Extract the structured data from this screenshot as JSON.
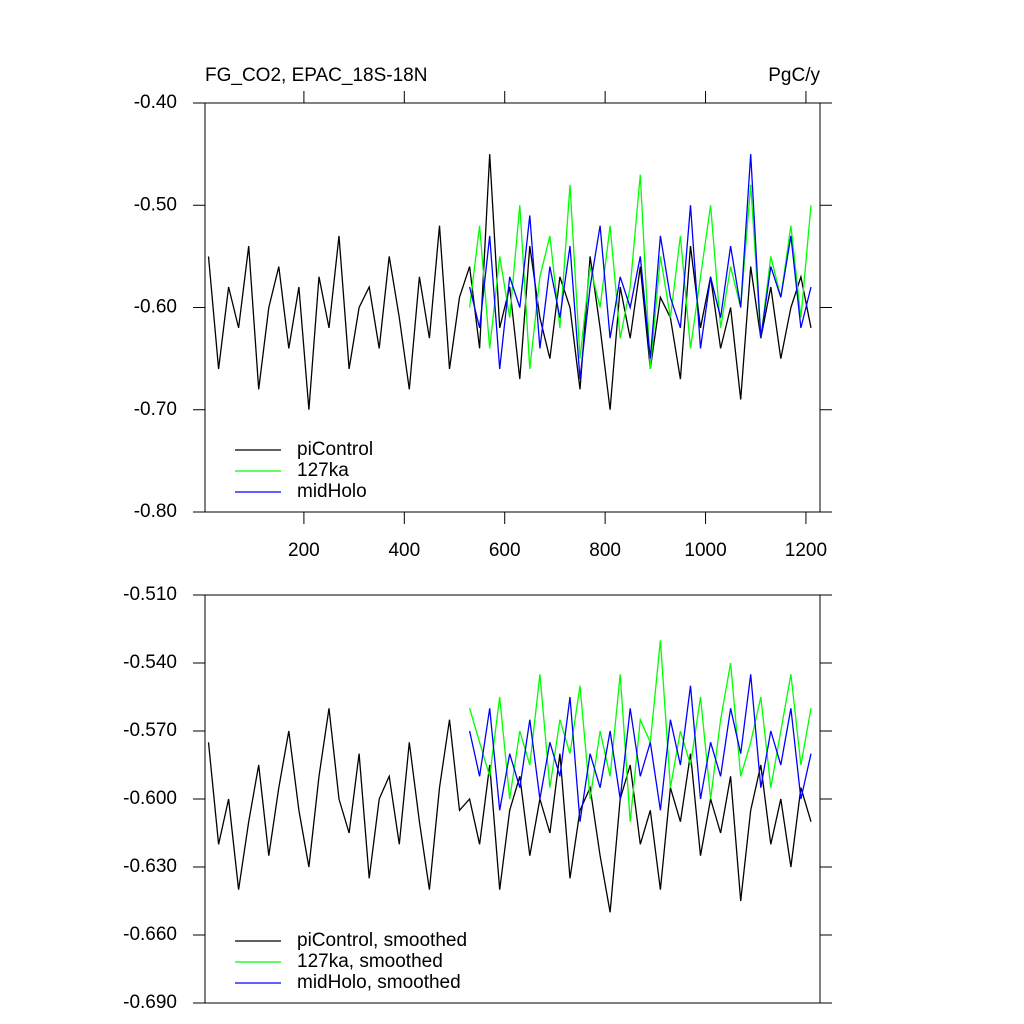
{
  "chart_data": [
    {
      "type": "line",
      "title": "FG_CO2, EPAC_18S-18N",
      "units": "PgC/y",
      "x": [
        10,
        30,
        50,
        70,
        90,
        110,
        130,
        150,
        170,
        190,
        210,
        230,
        250,
        270,
        290,
        310,
        330,
        350,
        370,
        390,
        410,
        430,
        450,
        470,
        490,
        510,
        530,
        550,
        570,
        590,
        610,
        630,
        650,
        670,
        690,
        710,
        730,
        750,
        770,
        790,
        810,
        830,
        850,
        870,
        890,
        910,
        930,
        950,
        970,
        990,
        1010,
        1030,
        1050,
        1070,
        1090,
        1110,
        1130,
        1150,
        1170,
        1190,
        1210
      ],
      "series": [
        {
          "name": "piControl",
          "color": "#000000",
          "values": [
            -0.55,
            -0.66,
            -0.58,
            -0.62,
            -0.54,
            -0.68,
            -0.6,
            -0.56,
            -0.64,
            -0.58,
            -0.7,
            -0.57,
            -0.62,
            -0.53,
            -0.66,
            -0.6,
            -0.58,
            -0.64,
            -0.55,
            -0.61,
            -0.68,
            -0.57,
            -0.63,
            -0.52,
            -0.66,
            -0.59,
            -0.56,
            -0.64,
            -0.45,
            -0.62,
            -0.58,
            -0.67,
            -0.54,
            -0.61,
            -0.65,
            -0.57,
            -0.6,
            -0.68,
            -0.55,
            -0.62,
            -0.7,
            -0.58,
            -0.63,
            -0.56,
            -0.66,
            -0.59,
            -0.61,
            -0.67,
            -0.54,
            -0.62,
            -0.57,
            -0.64,
            -0.6,
            -0.69,
            -0.56,
            -0.63,
            -0.58,
            -0.65,
            -0.6,
            -0.57,
            -0.62
          ]
        },
        {
          "name": "127ka",
          "color": "#00ff00",
          "values": [
            null,
            null,
            null,
            null,
            null,
            null,
            null,
            null,
            null,
            null,
            null,
            null,
            null,
            null,
            null,
            null,
            null,
            null,
            null,
            null,
            null,
            null,
            null,
            null,
            null,
            null,
            -0.6,
            -0.52,
            -0.64,
            -0.55,
            -0.61,
            -0.5,
            -0.66,
            -0.57,
            -0.53,
            -0.62,
            -0.48,
            -0.65,
            -0.56,
            -0.6,
            -0.52,
            -0.63,
            -0.58,
            -0.47,
            -0.66,
            -0.55,
            -0.61,
            -0.53,
            -0.64,
            -0.57,
            -0.5,
            -0.62,
            -0.56,
            -0.6,
            -0.48,
            -0.63,
            -0.55,
            -0.59,
            -0.52,
            -0.61,
            -0.5
          ]
        },
        {
          "name": "midHolo",
          "color": "#0000ff",
          "values": [
            null,
            null,
            null,
            null,
            null,
            null,
            null,
            null,
            null,
            null,
            null,
            null,
            null,
            null,
            null,
            null,
            null,
            null,
            null,
            null,
            null,
            null,
            null,
            null,
            null,
            null,
            -0.58,
            -0.62,
            -0.53,
            -0.66,
            -0.57,
            -0.6,
            -0.51,
            -0.64,
            -0.56,
            -0.61,
            -0.54,
            -0.67,
            -0.58,
            -0.52,
            -0.63,
            -0.57,
            -0.6,
            -0.55,
            -0.65,
            -0.53,
            -0.59,
            -0.62,
            -0.5,
            -0.64,
            -0.57,
            -0.61,
            -0.54,
            -0.6,
            -0.45,
            -0.63,
            -0.56,
            -0.59,
            -0.53,
            -0.62,
            -0.58
          ]
        }
      ],
      "xlim": [
        3,
        1228
      ],
      "xticks": [
        200,
        400,
        600,
        800,
        1000,
        1200
      ],
      "ylim": [
        -0.8,
        -0.4
      ],
      "yticks": [
        {
          "value": -0.8,
          "label": "-0.80"
        },
        {
          "value": -0.7,
          "label": "-0.70"
        },
        {
          "value": -0.6,
          "label": "-0.60"
        },
        {
          "value": -0.5,
          "label": "-0.50"
        },
        {
          "value": -0.4,
          "label": "-0.40"
        }
      ],
      "legend_position": "lower left"
    },
    {
      "type": "line",
      "x": [
        10,
        30,
        50,
        70,
        90,
        110,
        130,
        150,
        170,
        190,
        210,
        230,
        250,
        270,
        290,
        310,
        330,
        350,
        370,
        390,
        410,
        430,
        450,
        470,
        490,
        510,
        530,
        550,
        570,
        590,
        610,
        630,
        650,
        670,
        690,
        710,
        730,
        750,
        770,
        790,
        810,
        830,
        850,
        870,
        890,
        910,
        930,
        950,
        970,
        990,
        1010,
        1030,
        1050,
        1070,
        1090,
        1110,
        1130,
        1150,
        1170,
        1190,
        1210
      ],
      "series": [
        {
          "name": "piControl, smoothed",
          "color": "#000000",
          "values": [
            -0.575,
            -0.62,
            -0.6,
            -0.64,
            -0.61,
            -0.585,
            -0.625,
            -0.595,
            -0.57,
            -0.605,
            -0.63,
            -0.59,
            -0.56,
            -0.6,
            -0.615,
            -0.58,
            -0.635,
            -0.6,
            -0.59,
            -0.62,
            -0.575,
            -0.61,
            -0.64,
            -0.595,
            -0.565,
            -0.605,
            -0.6,
            -0.62,
            -0.585,
            -0.64,
            -0.605,
            -0.59,
            -0.625,
            -0.6,
            -0.615,
            -0.58,
            -0.635,
            -0.605,
            -0.595,
            -0.625,
            -0.65,
            -0.6,
            -0.585,
            -0.62,
            -0.605,
            -0.64,
            -0.595,
            -0.61,
            -0.58,
            -0.625,
            -0.6,
            -0.615,
            -0.59,
            -0.645,
            -0.605,
            -0.585,
            -0.62,
            -0.6,
            -0.63,
            -0.595,
            -0.61
          ]
        },
        {
          "name": "127ka, smoothed",
          "color": "#00ff00",
          "values": [
            null,
            null,
            null,
            null,
            null,
            null,
            null,
            null,
            null,
            null,
            null,
            null,
            null,
            null,
            null,
            null,
            null,
            null,
            null,
            null,
            null,
            null,
            null,
            null,
            null,
            null,
            -0.56,
            -0.575,
            -0.59,
            -0.555,
            -0.6,
            -0.57,
            -0.585,
            -0.545,
            -0.595,
            -0.565,
            -0.58,
            -0.55,
            -0.6,
            -0.57,
            -0.59,
            -0.545,
            -0.61,
            -0.565,
            -0.575,
            -0.53,
            -0.595,
            -0.57,
            -0.585,
            -0.555,
            -0.6,
            -0.565,
            -0.54,
            -0.59,
            -0.575,
            -0.555,
            -0.595,
            -0.57,
            -0.545,
            -0.585,
            -0.56
          ]
        },
        {
          "name": "midHolo, smoothed",
          "color": "#0000ff",
          "values": [
            null,
            null,
            null,
            null,
            null,
            null,
            null,
            null,
            null,
            null,
            null,
            null,
            null,
            null,
            null,
            null,
            null,
            null,
            null,
            null,
            null,
            null,
            null,
            null,
            null,
            null,
            -0.57,
            -0.59,
            -0.56,
            -0.605,
            -0.58,
            -0.595,
            -0.565,
            -0.6,
            -0.575,
            -0.59,
            -0.555,
            -0.61,
            -0.58,
            -0.595,
            -0.57,
            -0.6,
            -0.56,
            -0.59,
            -0.575,
            -0.605,
            -0.565,
            -0.585,
            -0.55,
            -0.6,
            -0.575,
            -0.59,
            -0.56,
            -0.58,
            -0.545,
            -0.595,
            -0.57,
            -0.585,
            -0.56,
            -0.6,
            -0.58
          ]
        }
      ],
      "xlim": [
        3,
        1228
      ],
      "ylim": [
        -0.69,
        -0.51
      ],
      "yticks": [
        {
          "value": -0.69,
          "label": "-0.690"
        },
        {
          "value": -0.66,
          "label": "-0.660"
        },
        {
          "value": -0.63,
          "label": "-0.630"
        },
        {
          "value": -0.6,
          "label": "-0.600"
        },
        {
          "value": -0.57,
          "label": "-0.570"
        },
        {
          "value": -0.54,
          "label": "-0.540"
        },
        {
          "value": -0.51,
          "label": "-0.510"
        }
      ],
      "legend_position": "lower left"
    }
  ]
}
